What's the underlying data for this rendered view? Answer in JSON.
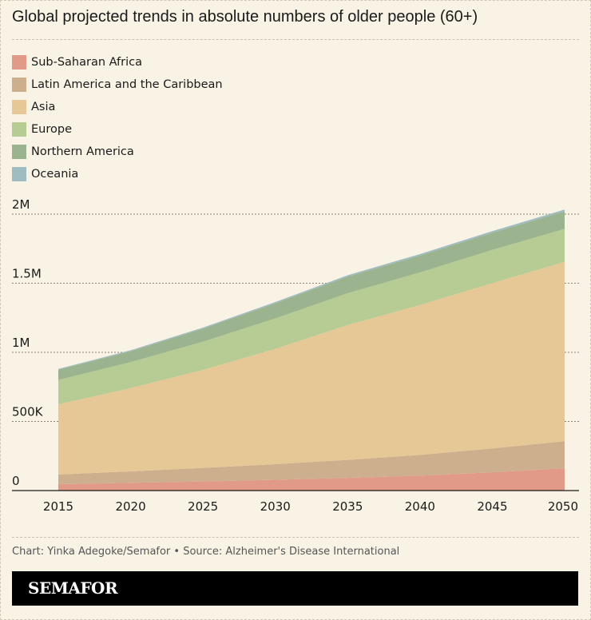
{
  "title": "Global projected trends in absolute numbers of older people (60+)",
  "source": "Chart: Yinka Adegoke/Semafor • Source: Alzheimer's Disease International",
  "brand": "SEMAFOR",
  "colors": {
    "background": "#f8f3e4",
    "Sub-Saharan Africa": "#e19a87",
    "Latin America and the Caribbean": "#cdaf8d",
    "Asia": "#e5c896",
    "Europe": "#b7cc95",
    "Northern America": "#9bb38f",
    "Oceania": "#9fbcc0"
  },
  "chart_data": {
    "type": "area",
    "stacked": true,
    "title": "Global projected trends in absolute numbers of older people (60+)",
    "x": [
      "2015",
      "2020",
      "2025",
      "2030",
      "2035",
      "2040",
      "2045",
      "2050"
    ],
    "ylim": [
      0,
      2000000
    ],
    "yticks": [
      {
        "value": 0,
        "label": "0"
      },
      {
        "value": 500000,
        "label": "500K"
      },
      {
        "value": 1000000,
        "label": "1M"
      },
      {
        "value": 1500000,
        "label": "1.5M"
      },
      {
        "value": 2000000,
        "label": "2M"
      }
    ],
    "grid": true,
    "legend": "top-left",
    "series": [
      {
        "name": "Sub-Saharan Africa",
        "values": [
          46000,
          56000,
          66000,
          78000,
          92000,
          108000,
          132000,
          161000
        ]
      },
      {
        "name": "Latin America and the Caribbean",
        "values": [
          70000,
          83000,
          98000,
          113000,
          130000,
          150000,
          173000,
          196000
        ]
      },
      {
        "name": "Asia",
        "values": [
          508000,
          602000,
          709000,
          834000,
          975000,
          1084000,
          1196000,
          1298000
        ]
      },
      {
        "name": "Europe",
        "values": [
          176000,
          188000,
          204000,
          220000,
          231000,
          236000,
          240000,
          238000
        ]
      },
      {
        "name": "Northern America",
        "values": [
          74000,
          79000,
          94000,
          110000,
          120000,
          122000,
          124000,
          127000
        ]
      },
      {
        "name": "Oceania",
        "values": [
          6000,
          7000,
          8000,
          9000,
          10000,
          11000,
          12000,
          13000
        ]
      }
    ]
  }
}
